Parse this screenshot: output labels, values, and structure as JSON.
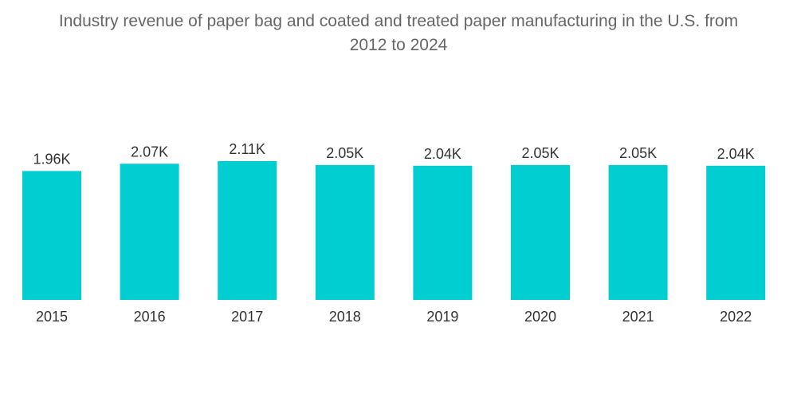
{
  "chart_data": {
    "type": "bar",
    "title_line1": "Industry revenue of paper bag and coated and treated paper manufacturing in the U.S. from",
    "title_line2": "2012 to 2024",
    "categories": [
      "2015",
      "2016",
      "2017",
      "2018",
      "2019",
      "2020",
      "2021",
      "2022"
    ],
    "values": [
      1.96,
      2.07,
      2.11,
      2.05,
      2.04,
      2.05,
      2.05,
      2.04
    ],
    "value_labels": [
      "1.96K",
      "2.07K",
      "2.11K",
      "2.05K",
      "2.04K",
      "2.05K",
      "2.05K",
      "2.04K"
    ],
    "xlabel": "",
    "ylabel": "",
    "ylim": [
      0,
      2.11
    ],
    "grid": false,
    "bar_color": "#00ced1"
  }
}
